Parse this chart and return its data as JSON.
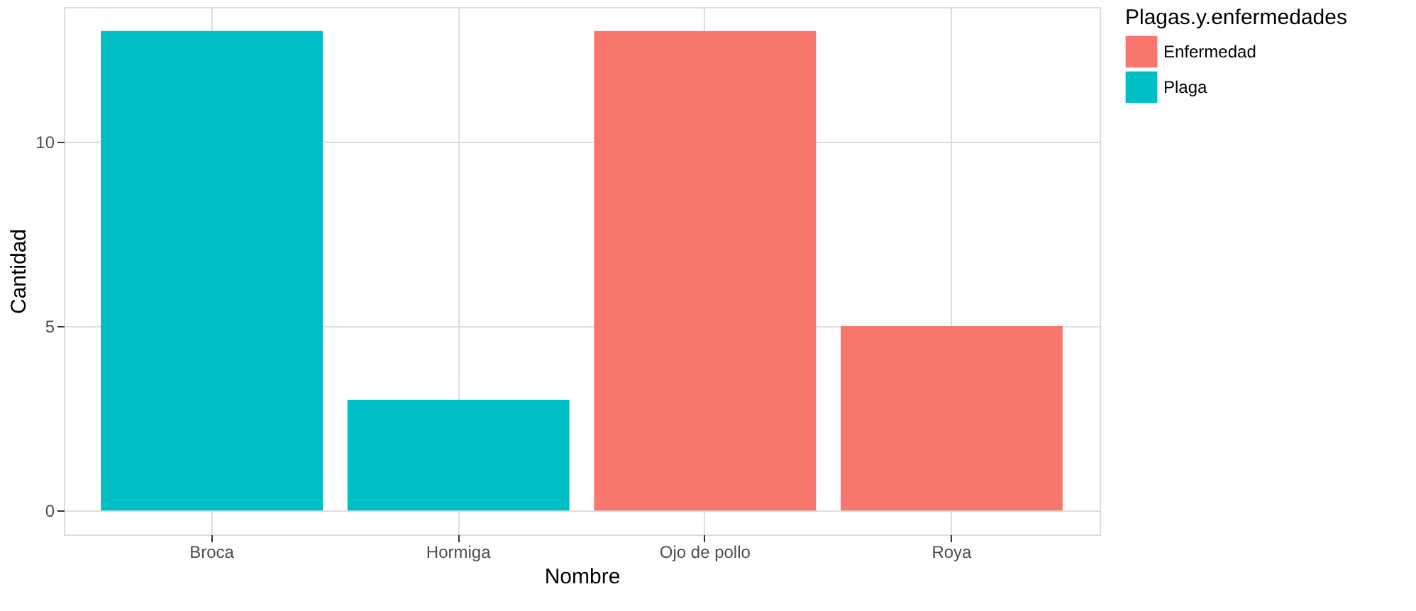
{
  "chart_data": {
    "type": "bar",
    "xlabel": "Nombre",
    "ylabel": "Cantidad",
    "legend_title": "Plagas.y.enfermedades",
    "categories": [
      "Broca",
      "Hormiga",
      "Ojo de pollo",
      "Roya"
    ],
    "series": [
      {
        "name": "Enfermedad",
        "color": "#f8766d",
        "values": [
          null,
          null,
          13,
          5
        ]
      },
      {
        "name": "Plaga",
        "color": "#00bfc4",
        "values": [
          13,
          3,
          null,
          null
        ]
      }
    ],
    "ylim": [
      -0.65,
      13.65
    ],
    "yticks": [
      0,
      5,
      10
    ],
    "grid": true,
    "legend": "right"
  }
}
